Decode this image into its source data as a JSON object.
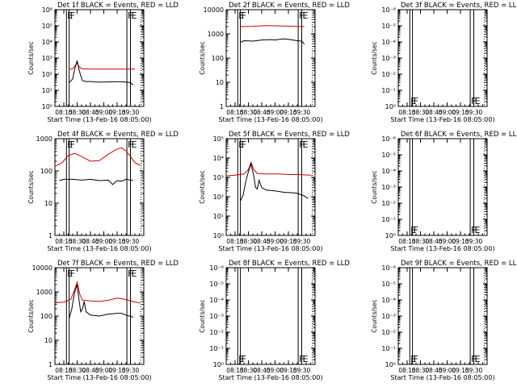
{
  "colors": {
    "events": "#000000",
    "lld": "#cc0000",
    "axes": "#000000",
    "background": "#ffffff"
  },
  "chart_data": [
    {
      "type": "line",
      "title": "Det 1f BLACK = Events, RED = LLD",
      "ylabel": "Counts/sec",
      "xlabel": "Start Time (13-Feb-16 08:05:00)",
      "yscale": "log",
      "ylim": [
        1,
        1000000
      ],
      "yticks": [
        "10⁰",
        "10¹",
        "10²",
        "10³",
        "10⁴",
        "10⁵",
        "10⁶"
      ],
      "xlim_minutes": [
        0,
        100
      ],
      "xticks": [
        "08:15",
        "08:30",
        "08:45",
        "09:00",
        "09:15",
        "09:30"
      ],
      "markers": [
        {
          "t": 13,
          "label": "E"
        },
        {
          "t": 16,
          "label": "F"
        },
        {
          "t": 81,
          "label": "F"
        },
        {
          "t": 85,
          "label": "E"
        }
      ],
      "series": [
        {
          "name": "LLD",
          "points": [
            [
              16,
              200
            ],
            [
              20,
              220
            ],
            [
              22,
              300
            ],
            [
              25,
              500
            ],
            [
              27,
              300
            ],
            [
              30,
              220
            ],
            [
              40,
              210
            ],
            [
              50,
              210
            ],
            [
              60,
              210
            ],
            [
              70,
              210
            ],
            [
              80,
              210
            ],
            [
              85,
              210
            ],
            [
              90,
              210
            ]
          ]
        },
        {
          "name": "Events",
          "points": [
            [
              16,
              30
            ],
            [
              20,
              50
            ],
            [
              22,
              180
            ],
            [
              25,
              700
            ],
            [
              27,
              200
            ],
            [
              29,
              80
            ],
            [
              31,
              40
            ],
            [
              35,
              35
            ],
            [
              40,
              35
            ],
            [
              50,
              32
            ],
            [
              60,
              33
            ],
            [
              70,
              34
            ],
            [
              75,
              34
            ],
            [
              80,
              32
            ],
            [
              85,
              30
            ],
            [
              88,
              22
            ]
          ]
        }
      ]
    },
    {
      "type": "line",
      "title": "Det 2f BLACK = Events, RED = LLD",
      "ylabel": "Counts/sec",
      "xlabel": "Start Time (13-Feb-16 08:05:00)",
      "yscale": "log",
      "ylim": [
        1,
        10000
      ],
      "yticks": [
        "1",
        "10",
        "100",
        "1000",
        "10000"
      ],
      "xlim_minutes": [
        0,
        100
      ],
      "xticks": [
        "08:15",
        "08:30",
        "08:45",
        "09:00",
        "09:15",
        "09:30"
      ],
      "markers": [
        {
          "t": 13,
          "label": "E"
        },
        {
          "t": 16,
          "label": "F"
        },
        {
          "t": 81,
          "label": "F"
        },
        {
          "t": 85,
          "label": "E"
        }
      ],
      "series": [
        {
          "name": "LLD",
          "points": [
            [
              16,
              2000
            ],
            [
              30,
              2050
            ],
            [
              45,
              2200
            ],
            [
              55,
              2150
            ],
            [
              65,
              2100
            ],
            [
              75,
              2050
            ],
            [
              85,
              2000
            ],
            [
              88,
              2000
            ]
          ]
        },
        {
          "name": "Events",
          "points": [
            [
              16,
              450
            ],
            [
              20,
              520
            ],
            [
              30,
              500
            ],
            [
              40,
              560
            ],
            [
              50,
              580
            ],
            [
              55,
              560
            ],
            [
              60,
              600
            ],
            [
              65,
              620
            ],
            [
              70,
              600
            ],
            [
              75,
              560
            ],
            [
              80,
              520
            ],
            [
              85,
              500
            ],
            [
              88,
              380
            ]
          ]
        }
      ]
    },
    {
      "type": "line",
      "title": "Det 3f BLACK = Events, RED = LLD",
      "ylabel": "Counts/sec",
      "xlabel": "Start Time (13-Feb-16 08:05:00)",
      "yscale": "log",
      "ylim": [
        1,
        1e-06
      ],
      "yticks": [
        "10⁰",
        "10⁻¹",
        "10⁻²",
        "10⁻³",
        "10⁻⁴",
        "10⁻⁵",
        "10⁻⁶"
      ],
      "xlim_minutes": [
        0,
        100
      ],
      "xticks": [
        "08:15",
        "08:30",
        "08:45",
        "09:00",
        "09:15",
        "09:30"
      ],
      "markers": [
        {
          "t": 13,
          "label": "E"
        },
        {
          "t": 16,
          "label": "F"
        },
        {
          "t": 81,
          "label": "F"
        },
        {
          "t": 85,
          "label": "E"
        }
      ],
      "series": []
    },
    {
      "type": "line",
      "title": "Det 4f BLACK = Events, RED = LLD",
      "ylabel": "Counts/sec",
      "xlabel": "Start Time (13-Feb-16 08:05:00)",
      "yscale": "log",
      "ylim": [
        1,
        1000
      ],
      "yticks": [
        "1",
        "10",
        "100",
        "1000"
      ],
      "xlim_minutes": [
        0,
        100
      ],
      "xticks": [
        "08:15",
        "08:30",
        "08:45",
        "09:00",
        "09:15",
        "09:30"
      ],
      "markers": [
        {
          "t": 13,
          "label": "E"
        },
        {
          "t": 16,
          "label": "F"
        },
        {
          "t": 81,
          "label": "F"
        },
        {
          "t": 85,
          "label": "E"
        }
      ],
      "series": [
        {
          "name": "LLD",
          "points": [
            [
              0,
              140
            ],
            [
              8,
              180
            ],
            [
              15,
              300
            ],
            [
              22,
              350
            ],
            [
              30,
              280
            ],
            [
              40,
              200
            ],
            [
              50,
              210
            ],
            [
              60,
              330
            ],
            [
              70,
              480
            ],
            [
              75,
              520
            ],
            [
              80,
              420
            ],
            [
              85,
              280
            ],
            [
              90,
              180
            ],
            [
              96,
              150
            ]
          ]
        },
        {
          "name": "Events",
          "points": [
            [
              5,
              50
            ],
            [
              10,
              55
            ],
            [
              20,
              55
            ],
            [
              30,
              52
            ],
            [
              40,
              55
            ],
            [
              50,
              50
            ],
            [
              60,
              52
            ],
            [
              65,
              38
            ],
            [
              70,
              50
            ],
            [
              75,
              48
            ],
            [
              80,
              55
            ],
            [
              85,
              52
            ],
            [
              88,
              50
            ]
          ]
        }
      ]
    },
    {
      "type": "line",
      "title": "Det 5f BLACK = Events, RED = LLD",
      "ylabel": "Counts/sec",
      "xlabel": "Start Time (13-Feb-16 08:05:00)",
      "yscale": "log",
      "ylim": [
        1,
        100000
      ],
      "yticks": [
        "10⁰",
        "10¹",
        "10²",
        "10³",
        "10⁴",
        "10⁵"
      ],
      "xlim_minutes": [
        0,
        100
      ],
      "xticks": [
        "08:15",
        "08:30",
        "08:45",
        "09:00",
        "09:15",
        "09:30"
      ],
      "markers": [
        {
          "t": 13,
          "label": "E"
        },
        {
          "t": 16,
          "label": "F"
        },
        {
          "t": 81,
          "label": "F"
        },
        {
          "t": 85,
          "label": "E"
        }
      ],
      "series": [
        {
          "name": "LLD",
          "points": [
            [
              0,
              1200
            ],
            [
              10,
              1300
            ],
            [
              20,
              1500
            ],
            [
              25,
              2500
            ],
            [
              28,
              6000
            ],
            [
              31,
              2500
            ],
            [
              35,
              1600
            ],
            [
              45,
              1500
            ],
            [
              60,
              1500
            ],
            [
              70,
              1400
            ],
            [
              80,
              1400
            ],
            [
              96,
              1300
            ]
          ]
        },
        {
          "name": "Events",
          "points": [
            [
              16,
              60
            ],
            [
              19,
              120
            ],
            [
              22,
              600
            ],
            [
              25,
              2000
            ],
            [
              28,
              5000
            ],
            [
              31,
              1200
            ],
            [
              33,
              300
            ],
            [
              35,
              250
            ],
            [
              37,
              700
            ],
            [
              40,
              300
            ],
            [
              45,
              220
            ],
            [
              55,
              200
            ],
            [
              65,
              170
            ],
            [
              75,
              160
            ],
            [
              80,
              150
            ],
            [
              88,
              110
            ],
            [
              92,
              80
            ]
          ]
        }
      ]
    },
    {
      "type": "line",
      "title": "Det 6f BLACK = Events, RED = LLD",
      "ylabel": "Counts/sec",
      "xlabel": "Start Time (13-Feb-16 08:05:00)",
      "yscale": "log",
      "ylim": [
        1,
        1e-06
      ],
      "yticks": [
        "10⁰",
        "10⁻¹",
        "10⁻²",
        "10⁻³",
        "10⁻⁴",
        "10⁻⁵",
        "10⁻⁶"
      ],
      "xlim_minutes": [
        0,
        100
      ],
      "xticks": [
        "08:15",
        "08:30",
        "08:45",
        "09:00",
        "09:15",
        "09:30"
      ],
      "markers": [
        {
          "t": 13,
          "label": "E"
        },
        {
          "t": 16,
          "label": "F"
        },
        {
          "t": 81,
          "label": "F"
        },
        {
          "t": 85,
          "label": "E"
        }
      ],
      "series": []
    },
    {
      "type": "line",
      "title": "Det 7f BLACK = Events, RED = LLD",
      "ylabel": "Counts/sec",
      "xlabel": "Start Time (13-Feb-16 08:05:00)",
      "yscale": "log",
      "ylim": [
        1,
        10000
      ],
      "yticks": [
        "1",
        "10",
        "100",
        "1000",
        "10000"
      ],
      "xlim_minutes": [
        0,
        100
      ],
      "xticks": [
        "08:15",
        "08:30",
        "08:45",
        "09:00",
        "09:15",
        "09:30"
      ],
      "markers": [
        {
          "t": 13,
          "label": "E"
        },
        {
          "t": 16,
          "label": "F"
        },
        {
          "t": 81,
          "label": "F"
        },
        {
          "t": 85,
          "label": "E"
        }
      ],
      "series": [
        {
          "name": "LLD",
          "points": [
            [
              0,
              350
            ],
            [
              10,
              380
            ],
            [
              18,
              500
            ],
            [
              22,
              1200
            ],
            [
              25,
              2500
            ],
            [
              28,
              800
            ],
            [
              31,
              450
            ],
            [
              40,
              420
            ],
            [
              50,
              400
            ],
            [
              60,
              450
            ],
            [
              70,
              550
            ],
            [
              75,
              520
            ],
            [
              80,
              480
            ],
            [
              90,
              380
            ],
            [
              96,
              350
            ]
          ]
        },
        {
          "name": "Events",
          "points": [
            [
              16,
              80
            ],
            [
              19,
              200
            ],
            [
              22,
              900
            ],
            [
              25,
              2000
            ],
            [
              27,
              500
            ],
            [
              29,
              150
            ],
            [
              31,
              200
            ],
            [
              33,
              400
            ],
            [
              35,
              150
            ],
            [
              40,
              110
            ],
            [
              50,
              100
            ],
            [
              60,
              120
            ],
            [
              70,
              130
            ],
            [
              75,
              130
            ],
            [
              80,
              110
            ],
            [
              88,
              90
            ]
          ]
        }
      ]
    },
    {
      "type": "line",
      "title": "Det 8f BLACK = Events, RED = LLD",
      "ylabel": "Counts/sec",
      "xlabel": "Start Time (13-Feb-16 08:05:00)",
      "yscale": "log",
      "ylim": [
        1,
        1e-06
      ],
      "yticks": [
        "10⁰",
        "10⁻¹",
        "10⁻²",
        "10⁻³",
        "10⁻⁴",
        "10⁻⁵",
        "10⁻⁶"
      ],
      "xlim_minutes": [
        0,
        100
      ],
      "xticks": [
        "08:15",
        "08:30",
        "08:45",
        "09:00",
        "09:15",
        "09:30"
      ],
      "markers": [
        {
          "t": 13,
          "label": "E"
        },
        {
          "t": 16,
          "label": "F"
        },
        {
          "t": 81,
          "label": "F"
        },
        {
          "t": 85,
          "label": "E"
        }
      ],
      "series": []
    },
    {
      "type": "line",
      "title": "Det 9f BLACK = Events, RED = LLD",
      "ylabel": "Counts/sec",
      "xlabel": "Start Time (13-Feb-16 08:05:00)",
      "yscale": "log",
      "ylim": [
        1,
        1e-06
      ],
      "yticks": [
        "10⁰",
        "10⁻¹",
        "10⁻²",
        "10⁻³",
        "10⁻⁴",
        "10⁻⁵",
        "10⁻⁶"
      ],
      "xlim_minutes": [
        0,
        100
      ],
      "xticks": [
        "08:15",
        "08:30",
        "08:45",
        "09:00",
        "09:15",
        "09:30"
      ],
      "markers": [
        {
          "t": 13,
          "label": "E"
        },
        {
          "t": 16,
          "label": "F"
        },
        {
          "t": 81,
          "label": "F"
        },
        {
          "t": 85,
          "label": "E"
        }
      ],
      "series": []
    }
  ]
}
